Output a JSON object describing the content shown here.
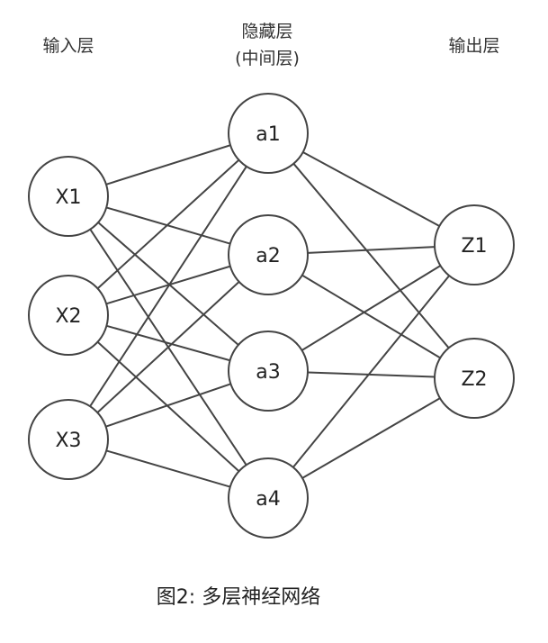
{
  "layers": [
    {
      "id": "input",
      "label_lines": [
        "输入层"
      ]
    },
    {
      "id": "hidden",
      "label_lines": [
        "隐藏层",
        "(中间层)"
      ]
    },
    {
      "id": "output",
      "label_lines": [
        "输出层"
      ]
    }
  ],
  "nodes": {
    "input": [
      "X1",
      "X2",
      "X3"
    ],
    "hidden": [
      "a1",
      "a2",
      "a3",
      "a4"
    ],
    "output": [
      "Z1",
      "Z2"
    ]
  },
  "connections": "fully-connected",
  "caption": "图2: 多层神经网络",
  "colors": {
    "stroke": "#444444",
    "background": "#ffffff"
  }
}
